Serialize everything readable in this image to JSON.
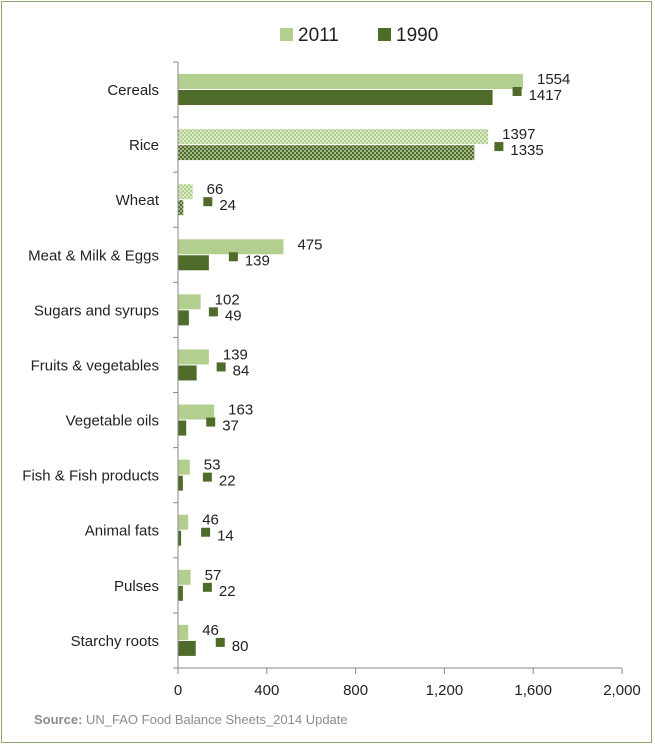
{
  "chart_data": {
    "type": "bar",
    "orientation": "horizontal",
    "categories": [
      "Cereals",
      "Rice",
      "Wheat",
      "Meat & Milk & Eggs",
      "Sugars and syrups",
      "Fruits & vegetables",
      "Vegetable oils",
      "Fish & Fish products",
      "Animal fats",
      "Pulses",
      "Starchy roots"
    ],
    "series": [
      {
        "name": "2011",
        "color": "#b3cf8f",
        "values": [
          1554,
          1397,
          66,
          475,
          102,
          139,
          163,
          53,
          46,
          57,
          46
        ]
      },
      {
        "name": "1990",
        "color": "#4f6b2a",
        "values": [
          1417,
          1335,
          24,
          139,
          49,
          84,
          37,
          22,
          14,
          22,
          80
        ]
      }
    ],
    "xlim": [
      0,
      2000
    ],
    "xticks": [
      "0",
      "400",
      "800",
      "1,200",
      "1,600",
      "2,000"
    ],
    "xtick_values": [
      0,
      400,
      800,
      1200,
      1600,
      2000
    ],
    "patterned_categories": [
      "Rice",
      "Wheat"
    ],
    "legend_position": "top",
    "grid": false
  },
  "source": {
    "label": "Source:",
    "text": " UN_FAO Food Balance Sheets_2014 Update"
  }
}
